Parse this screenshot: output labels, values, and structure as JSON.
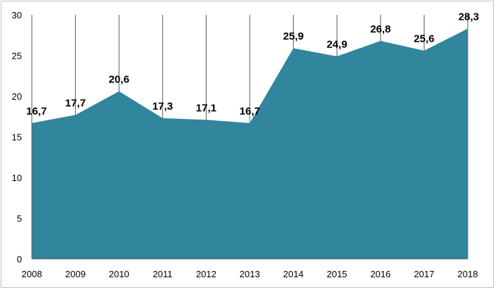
{
  "chart_data": {
    "type": "area",
    "title": "",
    "xlabel": "",
    "ylabel": "",
    "categories": [
      "2008",
      "2009",
      "2010",
      "2011",
      "2012",
      "2013",
      "2014",
      "2015",
      "2016",
      "2017",
      "2018"
    ],
    "values": [
      16.7,
      17.7,
      20.6,
      17.3,
      17.1,
      16.7,
      25.9,
      24.9,
      26.8,
      25.6,
      28.3
    ],
    "data_labels": [
      "16,7",
      "17,7",
      "20,6",
      "17,3",
      "17,1",
      "16,7",
      "25,9",
      "24,9",
      "26,8",
      "25,6",
      "28,3"
    ],
    "ylim": [
      0,
      30
    ],
    "y_ticks": [
      "0",
      "5",
      "10",
      "15",
      "20",
      "25",
      "30"
    ],
    "grid": "vertical lines at categories",
    "legend": "none",
    "fill_color": "#31859c",
    "grid_color": "#595959"
  }
}
